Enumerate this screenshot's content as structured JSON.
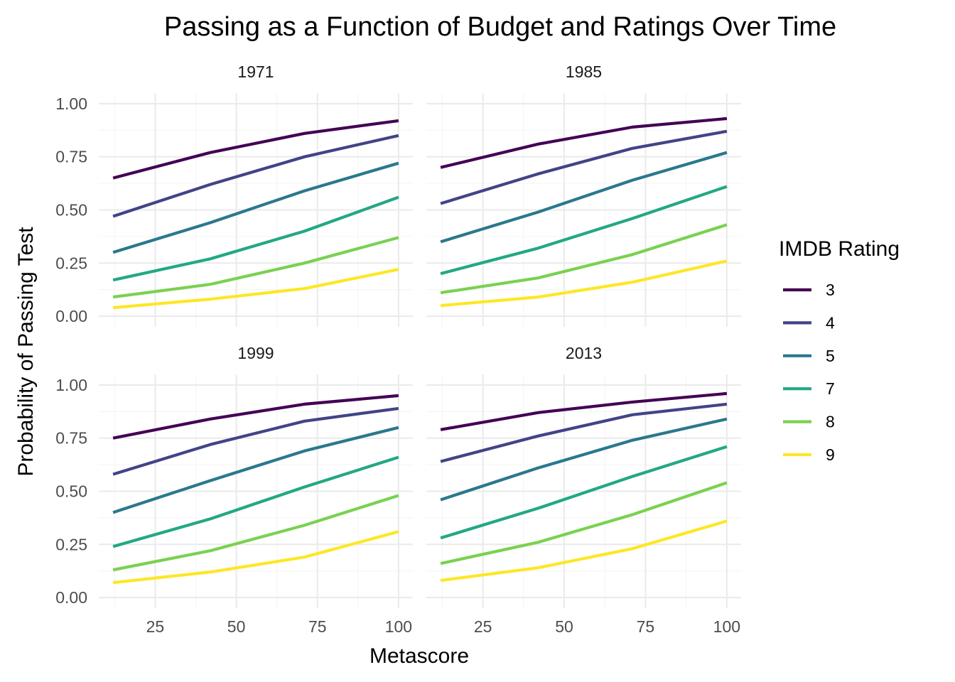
{
  "chart_data": {
    "type": "line",
    "title": "Passing as a Function of Budget and Ratings Over Time",
    "xlabel": "Metascore",
    "ylabel": "Probability of Passing Test",
    "xlim": [
      12,
      100
    ],
    "ylim": [
      0,
      1
    ],
    "x_ticks": [
      "25",
      "50",
      "75",
      "100"
    ],
    "y_ticks": [
      "0.00",
      "0.25",
      "0.50",
      "0.75",
      "1.00"
    ],
    "grid": true,
    "legend": {
      "title": "IMDB Rating",
      "placement": "right",
      "entries": [
        "3",
        "4",
        "5",
        "7",
        "8",
        "9"
      ]
    },
    "colors": {
      "3": "#440154",
      "4": "#414487",
      "5": "#2a788e",
      "7": "#22a884",
      "8": "#7ad151",
      "9": "#fde725"
    },
    "x": [
      12,
      42,
      71,
      100
    ],
    "panels": [
      {
        "label": "1971",
        "series": [
          {
            "name": "3",
            "values": [
              0.65,
              0.77,
              0.86,
              0.92
            ]
          },
          {
            "name": "4",
            "values": [
              0.47,
              0.62,
              0.75,
              0.85
            ]
          },
          {
            "name": "5",
            "values": [
              0.3,
              0.44,
              0.59,
              0.72
            ]
          },
          {
            "name": "7",
            "values": [
              0.17,
              0.27,
              0.4,
              0.56
            ]
          },
          {
            "name": "8",
            "values": [
              0.09,
              0.15,
              0.25,
              0.37
            ]
          },
          {
            "name": "9",
            "values": [
              0.04,
              0.08,
              0.13,
              0.22
            ]
          }
        ]
      },
      {
        "label": "1985",
        "series": [
          {
            "name": "3",
            "values": [
              0.7,
              0.81,
              0.89,
              0.93
            ]
          },
          {
            "name": "4",
            "values": [
              0.53,
              0.67,
              0.79,
              0.87
            ]
          },
          {
            "name": "5",
            "values": [
              0.35,
              0.49,
              0.64,
              0.77
            ]
          },
          {
            "name": "7",
            "values": [
              0.2,
              0.32,
              0.46,
              0.61
            ]
          },
          {
            "name": "8",
            "values": [
              0.11,
              0.18,
              0.29,
              0.43
            ]
          },
          {
            "name": "9",
            "values": [
              0.05,
              0.09,
              0.16,
              0.26
            ]
          }
        ]
      },
      {
        "label": "1999",
        "series": [
          {
            "name": "3",
            "values": [
              0.75,
              0.84,
              0.91,
              0.95
            ]
          },
          {
            "name": "4",
            "values": [
              0.58,
              0.72,
              0.83,
              0.89
            ]
          },
          {
            "name": "5",
            "values": [
              0.4,
              0.55,
              0.69,
              0.8
            ]
          },
          {
            "name": "7",
            "values": [
              0.24,
              0.37,
              0.52,
              0.66
            ]
          },
          {
            "name": "8",
            "values": [
              0.13,
              0.22,
              0.34,
              0.48
            ]
          },
          {
            "name": "9",
            "values": [
              0.07,
              0.12,
              0.19,
              0.31
            ]
          }
        ]
      },
      {
        "label": "2013",
        "series": [
          {
            "name": "3",
            "values": [
              0.79,
              0.87,
              0.92,
              0.96
            ]
          },
          {
            "name": "4",
            "values": [
              0.64,
              0.76,
              0.86,
              0.91
            ]
          },
          {
            "name": "5",
            "values": [
              0.46,
              0.61,
              0.74,
              0.84
            ]
          },
          {
            "name": "7",
            "values": [
              0.28,
              0.42,
              0.57,
              0.71
            ]
          },
          {
            "name": "8",
            "values": [
              0.16,
              0.26,
              0.39,
              0.54
            ]
          },
          {
            "name": "9",
            "values": [
              0.08,
              0.14,
              0.23,
              0.36
            ]
          }
        ]
      }
    ]
  }
}
